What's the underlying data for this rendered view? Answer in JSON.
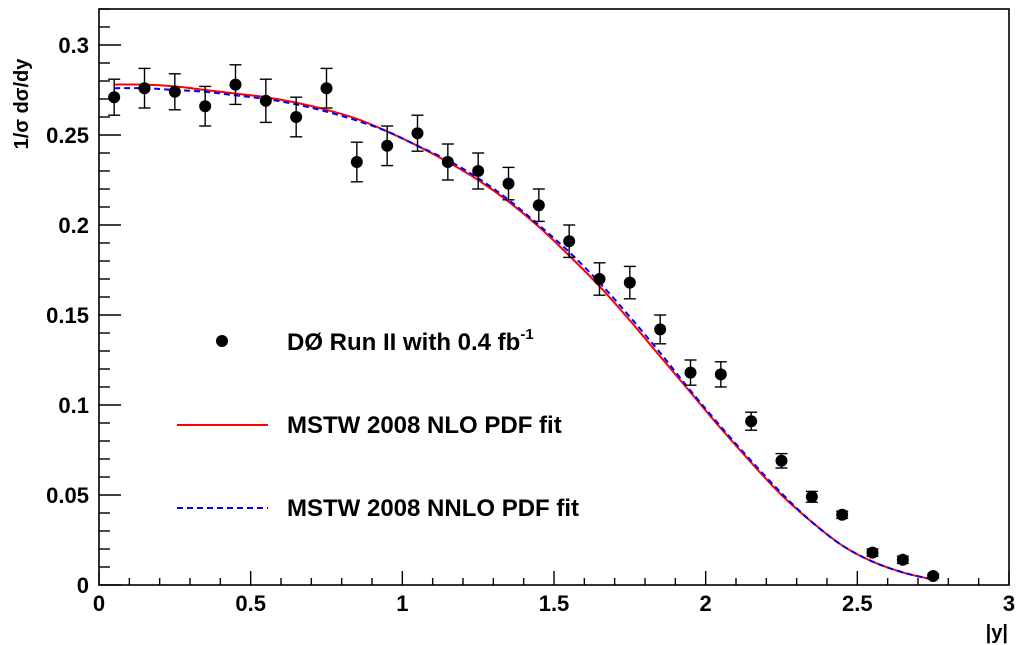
{
  "chart_data": {
    "type": "scatter",
    "xlabel": "|y|",
    "ylabel": "1/σ dσ/dy",
    "xlim": [
      0,
      3
    ],
    "ylim": [
      0,
      0.32
    ],
    "x_ticks": [
      0,
      0.5,
      1,
      1.5,
      2,
      2.5,
      3
    ],
    "x_tick_labels": [
      "0",
      "0.5",
      "1",
      "1.5",
      "2",
      "2.5",
      "3"
    ],
    "y_ticks": [
      0,
      0.05,
      0.1,
      0.15,
      0.2,
      0.25,
      0.3
    ],
    "y_tick_labels": [
      "0",
      "0.05",
      "0.1",
      "0.15",
      "0.2",
      "0.25",
      "0.3"
    ],
    "grid": false,
    "legend_position": "center-left",
    "series": [
      {
        "name": "DØ Run II with 0.4 fb",
        "name_superscript": "-1",
        "kind": "points-with-errors",
        "color": "#000000",
        "x": [
          0.05,
          0.15,
          0.25,
          0.35,
          0.45,
          0.55,
          0.65,
          0.75,
          0.85,
          0.95,
          1.05,
          1.15,
          1.25,
          1.35,
          1.45,
          1.55,
          1.65,
          1.75,
          1.85,
          1.95,
          2.05,
          2.15,
          2.25,
          2.35,
          2.45,
          2.55,
          2.65,
          2.75
        ],
        "y": [
          0.271,
          0.276,
          0.274,
          0.266,
          0.278,
          0.269,
          0.26,
          0.276,
          0.235,
          0.244,
          0.251,
          0.235,
          0.23,
          0.223,
          0.211,
          0.191,
          0.17,
          0.168,
          0.142,
          0.118,
          0.117,
          0.091,
          0.069,
          0.049,
          0.039,
          0.018,
          0.014,
          0.005
        ],
        "err": [
          0.01,
          0.011,
          0.01,
          0.011,
          0.011,
          0.012,
          0.011,
          0.011,
          0.011,
          0.011,
          0.01,
          0.01,
          0.01,
          0.009,
          0.009,
          0.009,
          0.009,
          0.009,
          0.008,
          0.007,
          0.007,
          0.005,
          0.004,
          0.003,
          0.002,
          0.002,
          0.002,
          0.001
        ]
      },
      {
        "name": "MSTW 2008 NLO PDF fit",
        "kind": "line",
        "color": "#ff0000",
        "dash": "solid",
        "x": [
          0.05,
          0.15,
          0.25,
          0.35,
          0.45,
          0.55,
          0.65,
          0.75,
          0.85,
          0.95,
          1.05,
          1.15,
          1.25,
          1.35,
          1.45,
          1.55,
          1.65,
          1.75,
          1.85,
          1.95,
          2.05,
          2.15,
          2.25,
          2.35,
          2.45,
          2.55,
          2.65,
          2.75
        ],
        "y": [
          0.278,
          0.278,
          0.277,
          0.275,
          0.273,
          0.271,
          0.268,
          0.264,
          0.259,
          0.252,
          0.244,
          0.235,
          0.225,
          0.213,
          0.199,
          0.183,
          0.166,
          0.147,
          0.127,
          0.107,
          0.087,
          0.068,
          0.05,
          0.035,
          0.022,
          0.013,
          0.007,
          0.003
        ]
      },
      {
        "name": "MSTW 2008 NNLO PDF fit",
        "kind": "line",
        "color": "#0000ff",
        "dash": "dashed",
        "x": [
          0.05,
          0.15,
          0.25,
          0.35,
          0.45,
          0.55,
          0.65,
          0.75,
          0.85,
          0.95,
          1.05,
          1.15,
          1.25,
          1.35,
          1.45,
          1.55,
          1.65,
          1.75,
          1.85,
          1.95,
          2.05,
          2.15,
          2.25,
          2.35,
          2.45,
          2.55,
          2.65,
          2.75
        ],
        "y": [
          0.276,
          0.276,
          0.275,
          0.274,
          0.272,
          0.27,
          0.267,
          0.263,
          0.258,
          0.252,
          0.244,
          0.236,
          0.226,
          0.214,
          0.2,
          0.185,
          0.168,
          0.149,
          0.129,
          0.108,
          0.088,
          0.069,
          0.051,
          0.035,
          0.022,
          0.013,
          0.007,
          0.003
        ]
      }
    ]
  }
}
